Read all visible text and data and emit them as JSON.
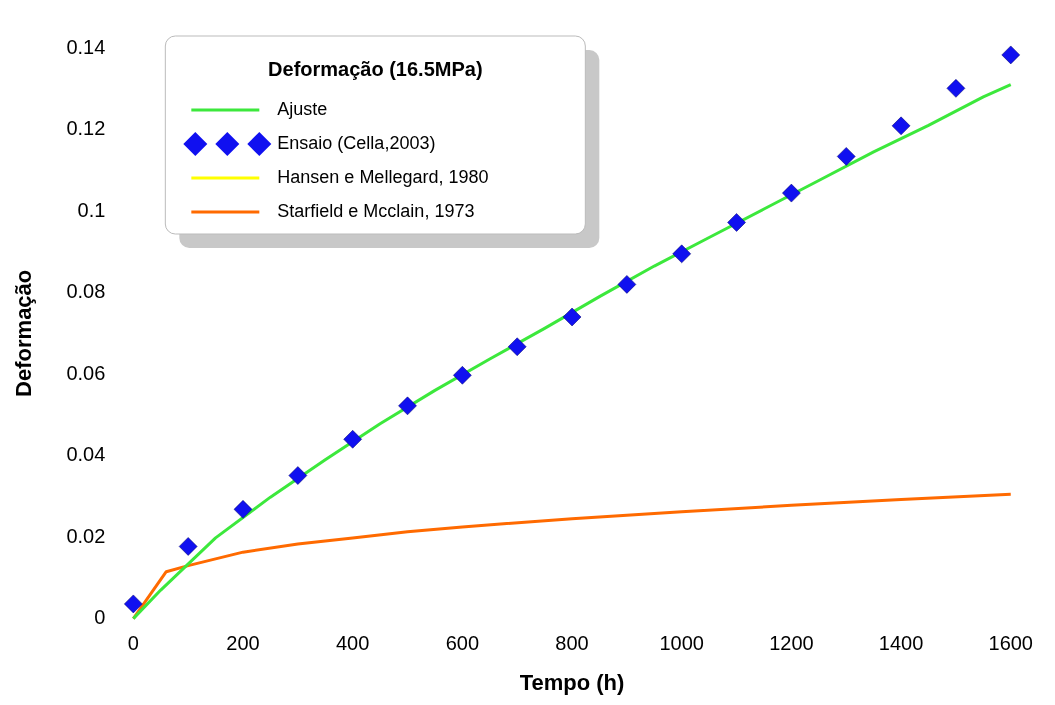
{
  "chart_data": {
    "type": "line",
    "xlabel": "Tempo (h)",
    "ylabel": "Deformação",
    "legend_title": "Deformação (16.5MPa)",
    "legend": "top left",
    "grid": false,
    "xlim": [
      0,
      1600
    ],
    "xticks": [
      0,
      200,
      400,
      600,
      800,
      1000,
      1200,
      1400,
      1600
    ],
    "ylim": [
      0,
      0.14
    ],
    "yticks": [
      0,
      0.02,
      0.04,
      0.06,
      0.08,
      0.1,
      0.12,
      0.14
    ],
    "series": [
      {
        "name": "Ajuste",
        "type": "line",
        "color": "#3ce83c",
        "marker": "none",
        "line_style": "solid",
        "x": [
          0,
          50,
          150,
          250,
          350,
          450,
          550,
          650,
          750,
          850,
          950,
          1050,
          1150,
          1250,
          1350,
          1450,
          1550,
          1600
        ],
        "values": [
          0,
          0.007,
          0.0198,
          0.0298,
          0.039,
          0.0478,
          0.056,
          0.0637,
          0.0712,
          0.079,
          0.0865,
          0.0935,
          0.1005,
          0.1075,
          0.1145,
          0.121,
          0.128,
          0.131
        ]
      },
      {
        "name": "Ensaio (Cella,2003)",
        "type": "scatter",
        "color": "#1010f0",
        "marker": "diamond",
        "x": [
          0,
          100,
          200,
          300,
          400,
          500,
          600,
          700,
          800,
          900,
          1000,
          1100,
          1200,
          1300,
          1400,
          1500,
          1600
        ],
        "values": [
          0.0036,
          0.0177,
          0.0268,
          0.0351,
          0.044,
          0.0522,
          0.0597,
          0.0667,
          0.074,
          0.082,
          0.0895,
          0.0972,
          0.1044,
          0.1134,
          0.1209,
          0.1301,
          0.1383
        ]
      },
      {
        "name": "Hansen e Mellegard, 1980",
        "type": "line",
        "color": "#ffff00",
        "marker": "none",
        "line_style": "solid"
      },
      {
        "name": "Starfield e Mcclain, 1973",
        "type": "line",
        "color": "#ff6a00",
        "marker": "none",
        "line_style": "solid",
        "x": [
          0,
          60,
          100,
          200,
          300,
          400,
          500,
          600,
          800,
          1000,
          1200,
          1400,
          1600
        ],
        "values": [
          0,
          0.0115,
          0.013,
          0.0163,
          0.0183,
          0.0198,
          0.0213,
          0.0225,
          0.0245,
          0.0262,
          0.0278,
          0.0292,
          0.0305
        ]
      }
    ]
  }
}
